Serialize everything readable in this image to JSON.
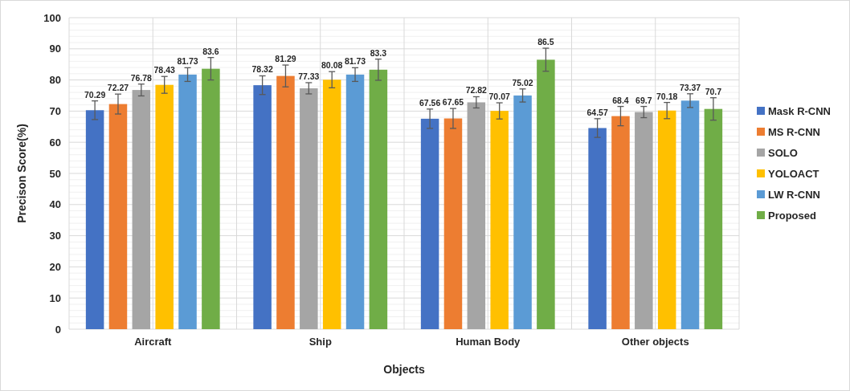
{
  "chart_data": {
    "type": "bar",
    "xlabel": "Objects",
    "ylabel": "Precison Score(%)",
    "categories": [
      "Aircraft",
      "Ship",
      "Human Body",
      "Other objects"
    ],
    "series": [
      {
        "name": "Mask R-CNN",
        "color": "#4472c4",
        "values": [
          70.29,
          78.32,
          67.56,
          64.57
        ],
        "errors": [
          3,
          3,
          3.1,
          3
        ]
      },
      {
        "name": "MS R-CNN",
        "color": "#ed7d31",
        "values": [
          72.27,
          81.29,
          67.65,
          68.4
        ],
        "errors": [
          3.2,
          3.5,
          3.2,
          3.1
        ]
      },
      {
        "name": "SOLO",
        "color": "#a5a5a5",
        "values": [
          76.78,
          77.33,
          72.82,
          69.7
        ],
        "errors": [
          1.9,
          1.8,
          1.8,
          1.8
        ]
      },
      {
        "name": "YOLOACT",
        "color": "#ffc000",
        "values": [
          78.43,
          80.08,
          70.07,
          70.18
        ],
        "errors": [
          2.7,
          2.6,
          2.6,
          2.6
        ]
      },
      {
        "name": "LW R-CNN",
        "color": "#5b9bd5",
        "values": [
          81.73,
          81.73,
          75.02,
          73.37
        ],
        "errors": [
          2.2,
          2.2,
          2.1,
          2.2
        ]
      },
      {
        "name": "Proposed",
        "color": "#70ad47",
        "values": [
          83.6,
          83.3,
          86.5,
          70.7
        ],
        "errors": [
          3.6,
          3.4,
          3.7,
          3.6
        ]
      }
    ],
    "ylim": [
      0,
      100
    ],
    "yticks": [
      0,
      10,
      20,
      30,
      40,
      50,
      60,
      70,
      80,
      90,
      100
    ],
    "grid": true,
    "legend": "right",
    "data_labels": true
  }
}
